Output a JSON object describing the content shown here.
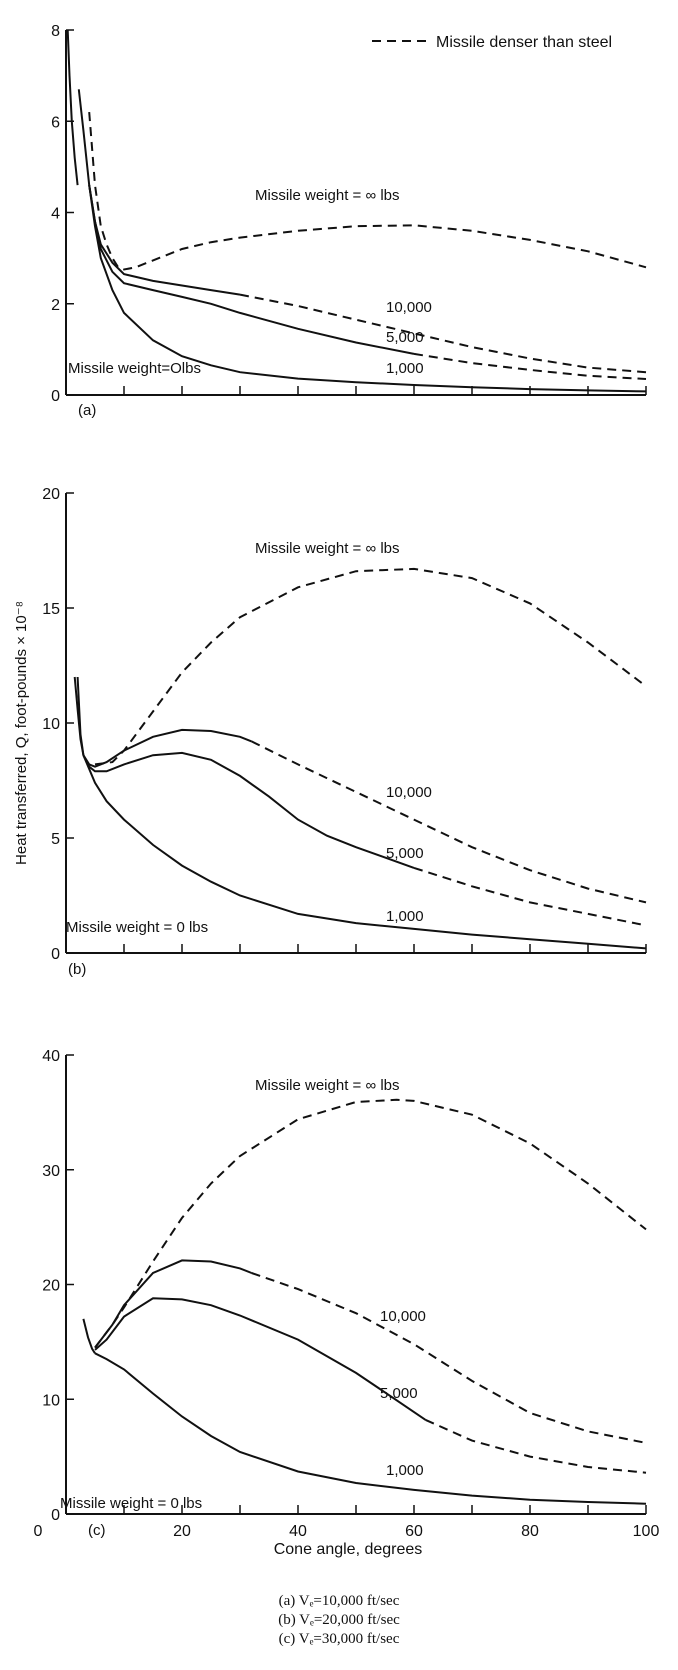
{
  "chart_data": [
    {
      "type": "line",
      "panel": "(a)",
      "ylim": [
        0,
        8
      ],
      "yticks": [
        "0",
        "2",
        "4",
        "6",
        "8"
      ],
      "xlim": [
        0,
        100
      ],
      "x_tick_labels_visible": false,
      "legend": {
        "position": "top-right",
        "text": "Missile denser than steel",
        "line_style": "dashed"
      },
      "series": [
        {
          "name": "Missile weight = ∞ lbs",
          "style": "dashed",
          "points": [
            [
              4,
              6.2
            ],
            [
              5,
              4.6
            ],
            [
              6,
              3.7
            ],
            [
              7,
              3.3
            ],
            [
              8,
              3.0
            ],
            [
              9,
              2.8
            ],
            [
              10,
              2.75
            ],
            [
              12,
              2.8
            ],
            [
              15,
              2.95
            ],
            [
              20,
              3.2
            ],
            [
              25,
              3.35
            ],
            [
              30,
              3.45
            ],
            [
              40,
              3.6
            ],
            [
              50,
              3.7
            ],
            [
              60,
              3.72
            ],
            [
              70,
              3.6
            ],
            [
              80,
              3.4
            ],
            [
              90,
              3.15
            ],
            [
              100,
              2.8
            ]
          ]
        },
        {
          "name": "10,000",
          "style": "solid-then-dashed",
          "dash_from_x": 30,
          "points": [
            [
              2.2,
              6.7
            ],
            [
              3,
              5.8
            ],
            [
              4,
              4.6
            ],
            [
              5,
              3.8
            ],
            [
              6,
              3.3
            ],
            [
              8,
              2.9
            ],
            [
              10,
              2.65
            ],
            [
              15,
              2.5
            ],
            [
              20,
              2.4
            ],
            [
              25,
              2.3
            ],
            [
              30,
              2.2
            ],
            [
              40,
              1.95
            ],
            [
              50,
              1.65
            ],
            [
              60,
              1.35
            ],
            [
              70,
              1.05
            ],
            [
              80,
              0.8
            ],
            [
              90,
              0.6
            ],
            [
              100,
              0.5
            ]
          ]
        },
        {
          "name": "5,000",
          "style": "solid-then-dashed",
          "dash_from_x": 60,
          "points": [
            [
              4,
              4.6
            ],
            [
              5,
              3.8
            ],
            [
              6,
              3.2
            ],
            [
              8,
              2.7
            ],
            [
              10,
              2.45
            ],
            [
              15,
              2.3
            ],
            [
              20,
              2.15
            ],
            [
              25,
              2.0
            ],
            [
              30,
              1.8
            ],
            [
              40,
              1.45
            ],
            [
              50,
              1.15
            ],
            [
              60,
              0.9
            ],
            [
              70,
              0.7
            ],
            [
              80,
              0.55
            ],
            [
              90,
              0.42
            ],
            [
              100,
              0.35
            ]
          ]
        },
        {
          "name": "1,000",
          "style": "solid",
          "points": [
            [
              4,
              4.6
            ],
            [
              5,
              3.7
            ],
            [
              6,
              3.0
            ],
            [
              8,
              2.3
            ],
            [
              10,
              1.8
            ],
            [
              15,
              1.2
            ],
            [
              20,
              0.85
            ],
            [
              25,
              0.65
            ],
            [
              30,
              0.5
            ],
            [
              40,
              0.36
            ],
            [
              50,
              0.28
            ],
            [
              60,
              0.22
            ],
            [
              70,
              0.17
            ],
            [
              80,
              0.13
            ],
            [
              90,
              0.1
            ],
            [
              100,
              0.08
            ]
          ]
        },
        {
          "name": "Missile weight=Olbs",
          "style": "solid",
          "points": [
            [
              0.3,
              8.0
            ],
            [
              0.6,
              7.0
            ],
            [
              1,
              6.0
            ],
            [
              1.5,
              5.2
            ],
            [
              2,
              4.6
            ]
          ]
        }
      ]
    },
    {
      "type": "line",
      "panel": "(b)",
      "ylim": [
        0,
        20
      ],
      "yticks": [
        "0",
        "5",
        "10",
        "15",
        "20"
      ],
      "xlim": [
        0,
        100
      ],
      "x_tick_labels_visible": false,
      "ylabel": "Heat transferred, Q, foot-pounds × 10⁻⁸",
      "series": [
        {
          "name": "Missile weight = ∞ lbs",
          "style": "dashed",
          "points": [
            [
              5,
              8.2
            ],
            [
              8,
              8.3
            ],
            [
              10,
              8.8
            ],
            [
              15,
              10.5
            ],
            [
              20,
              12.2
            ],
            [
              25,
              13.5
            ],
            [
              30,
              14.6
            ],
            [
              40,
              15.9
            ],
            [
              50,
              16.6
            ],
            [
              60,
              16.7
            ],
            [
              70,
              16.3
            ],
            [
              80,
              15.2
            ],
            [
              90,
              13.5
            ],
            [
              100,
              11.6
            ]
          ]
        },
        {
          "name": "10,000",
          "style": "solid-then-dashed",
          "dash_from_x": 32,
          "points": [
            [
              2,
              12.0
            ],
            [
              2.5,
              9.5
            ],
            [
              3,
              8.6
            ],
            [
              4,
              8.2
            ],
            [
              5,
              8.1
            ],
            [
              7,
              8.3
            ],
            [
              10,
              8.8
            ],
            [
              15,
              9.4
            ],
            [
              20,
              9.7
            ],
            [
              25,
              9.65
            ],
            [
              30,
              9.4
            ],
            [
              32,
              9.2
            ],
            [
              40,
              8.2
            ],
            [
              50,
              7.0
            ],
            [
              60,
              5.8
            ],
            [
              70,
              4.6
            ],
            [
              80,
              3.6
            ],
            [
              90,
              2.8
            ],
            [
              100,
              2.2
            ]
          ]
        },
        {
          "name": "5,000",
          "style": "solid-then-dashed",
          "dash_from_x": 60,
          "points": [
            [
              3,
              8.6
            ],
            [
              4,
              8.1
            ],
            [
              5,
              7.9
            ],
            [
              7,
              7.9
            ],
            [
              10,
              8.2
            ],
            [
              15,
              8.6
            ],
            [
              20,
              8.7
            ],
            [
              25,
              8.4
            ],
            [
              30,
              7.7
            ],
            [
              35,
              6.8
            ],
            [
              40,
              5.8
            ],
            [
              45,
              5.1
            ],
            [
              50,
              4.6
            ],
            [
              60,
              3.7
            ],
            [
              70,
              2.9
            ],
            [
              80,
              2.2
            ],
            [
              90,
              1.7
            ],
            [
              100,
              1.2
            ]
          ]
        },
        {
          "name": "1,000",
          "style": "solid",
          "points": [
            [
              3,
              8.6
            ],
            [
              4,
              8.0
            ],
            [
              5,
              7.4
            ],
            [
              7,
              6.6
            ],
            [
              10,
              5.8
            ],
            [
              15,
              4.7
            ],
            [
              20,
              3.8
            ],
            [
              25,
              3.1
            ],
            [
              30,
              2.5
            ],
            [
              40,
              1.7
            ],
            [
              50,
              1.3
            ],
            [
              60,
              1.05
            ],
            [
              70,
              0.8
            ],
            [
              80,
              0.6
            ],
            [
              90,
              0.4
            ],
            [
              100,
              0.2
            ]
          ]
        },
        {
          "name": "Missile weight = 0 lbs",
          "style": "solid",
          "points": [
            [
              1.5,
              12.0
            ],
            [
              2,
              10.6
            ],
            [
              2.5,
              9.3
            ],
            [
              3,
              8.6
            ]
          ]
        }
      ]
    },
    {
      "type": "line",
      "panel": "(c)",
      "ylim": [
        0,
        40
      ],
      "yticks": [
        "0",
        "10",
        "20",
        "30",
        "40"
      ],
      "xlim": [
        0,
        100
      ],
      "xticks": [
        "20",
        "40",
        "60",
        "80",
        "100"
      ],
      "x_origin_label": "0",
      "xlabel": "Cone angle, degrees",
      "series": [
        {
          "name": "Missile weight = ∞ lbs",
          "style": "dashed",
          "points": [
            [
              5,
              14.5
            ],
            [
              8,
              16.5
            ],
            [
              10,
              18.0
            ],
            [
              15,
              22.0
            ],
            [
              20,
              25.8
            ],
            [
              25,
              28.8
            ],
            [
              30,
              31.2
            ],
            [
              40,
              34.4
            ],
            [
              50,
              35.9
            ],
            [
              57,
              36.1
            ],
            [
              60,
              36.0
            ],
            [
              70,
              34.8
            ],
            [
              80,
              32.3
            ],
            [
              90,
              28.8
            ],
            [
              100,
              24.8
            ]
          ]
        },
        {
          "name": "10,000",
          "style": "solid-then-dashed",
          "dash_from_x": 32,
          "points": [
            [
              5,
              14.5
            ],
            [
              8,
              16.5
            ],
            [
              10,
              18.2
            ],
            [
              15,
              21.0
            ],
            [
              20,
              22.1
            ],
            [
              25,
              22.0
            ],
            [
              30,
              21.4
            ],
            [
              32,
              21.0
            ],
            [
              40,
              19.6
            ],
            [
              50,
              17.5
            ],
            [
              60,
              14.8
            ],
            [
              70,
              11.6
            ],
            [
              80,
              8.8
            ],
            [
              90,
              7.2
            ],
            [
              100,
              6.2
            ]
          ]
        },
        {
          "name": "5,000",
          "style": "solid-then-dashed",
          "dash_from_x": 62,
          "points": [
            [
              5,
              14.3
            ],
            [
              7,
              15.2
            ],
            [
              10,
              17.2
            ],
            [
              15,
              18.8
            ],
            [
              20,
              18.7
            ],
            [
              25,
              18.2
            ],
            [
              30,
              17.3
            ],
            [
              40,
              15.2
            ],
            [
              50,
              12.3
            ],
            [
              55,
              10.6
            ],
            [
              62,
              8.2
            ],
            [
              70,
              6.4
            ],
            [
              80,
              5.0
            ],
            [
              90,
              4.1
            ],
            [
              100,
              3.6
            ]
          ]
        },
        {
          "name": "1,000",
          "style": "solid",
          "points": [
            [
              5,
              14.0
            ],
            [
              7,
              13.5
            ],
            [
              10,
              12.6
            ],
            [
              15,
              10.5
            ],
            [
              20,
              8.5
            ],
            [
              25,
              6.8
            ],
            [
              30,
              5.4
            ],
            [
              40,
              3.7
            ],
            [
              50,
              2.7
            ],
            [
              60,
              2.1
            ],
            [
              70,
              1.6
            ],
            [
              80,
              1.25
            ],
            [
              90,
              1.05
            ],
            [
              100,
              0.9
            ]
          ]
        },
        {
          "name": "Missile weight = 0 lbs",
          "style": "solid",
          "points": [
            [
              3,
              17.0
            ],
            [
              3.8,
              15.4
            ],
            [
              4.5,
              14.4
            ],
            [
              5,
              14.0
            ]
          ]
        }
      ]
    }
  ],
  "caption": [
    "(a)  Vₑ=10,000 ft/sec",
    "(b)  Vₑ=20,000 ft/sec",
    "(c)  Vₑ=30,000 ft/sec"
  ],
  "colors": {
    "ink": "#111111",
    "background": "#ffffff"
  }
}
